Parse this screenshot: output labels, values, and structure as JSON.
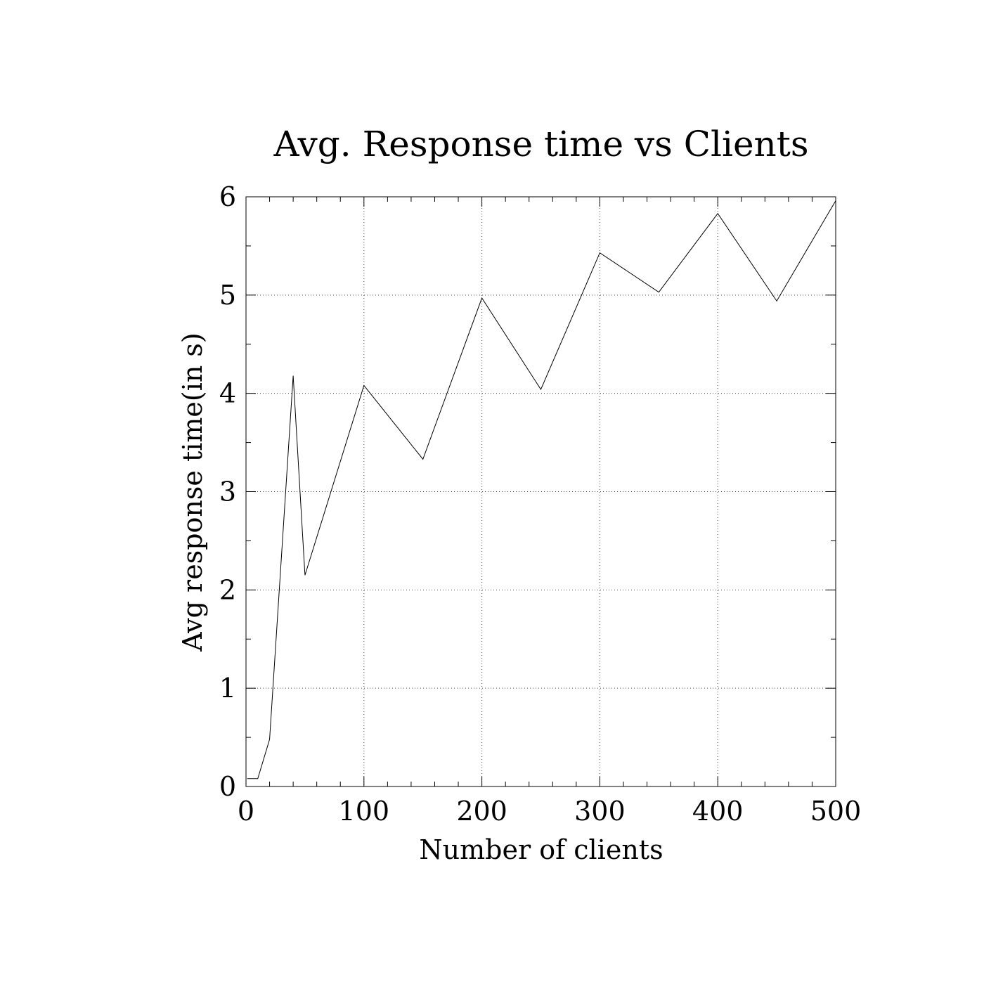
{
  "chart_data": {
    "type": "line",
    "title": "Avg. Response time vs Clients",
    "xlabel": "Number of clients",
    "ylabel": "Avg response time(in s)",
    "xlim": [
      0,
      500
    ],
    "ylim": [
      0,
      6
    ],
    "x_ticks": [
      0,
      100,
      200,
      300,
      400,
      500
    ],
    "x_tick_labels": [
      "0",
      "100",
      "200",
      "300",
      "400",
      "500"
    ],
    "y_ticks": [
      0,
      1,
      2,
      3,
      4,
      5,
      6
    ],
    "y_tick_labels": [
      "0",
      "1",
      "2",
      "3",
      "4",
      "5",
      "6"
    ],
    "grid": true,
    "legend": "none",
    "series": [
      {
        "color": "#000000",
        "x": [
          1,
          10,
          20,
          40,
          50,
          100,
          150,
          200,
          250,
          300,
          350,
          400,
          450,
          500
        ],
        "y": [
          0.08,
          0.08,
          0.48,
          4.18,
          2.15,
          4.08,
          3.33,
          4.97,
          4.04,
          5.43,
          5.03,
          5.83,
          4.94,
          5.96
        ]
      }
    ]
  }
}
